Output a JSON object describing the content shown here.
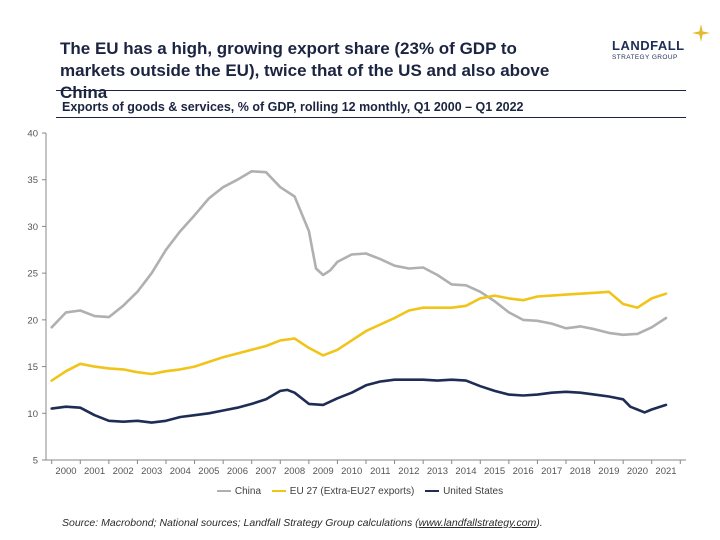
{
  "header": {
    "headline": "The EU has a high, growing export share (23% of GDP to markets outside the EU), twice that of the US and also above China",
    "logo_name": "LANDFALL",
    "logo_sub": "STRATEGY GROUP",
    "subtitle": "Exports of goods & services, % of GDP, rolling 12 monthly, Q1 2000 – Q1 2022"
  },
  "source": {
    "prefix": "Source: Macrobond; National sources; Landfall Strategy Group calculations (",
    "link": "www.landfallstrategy.com",
    "suffix": ")."
  },
  "colors": {
    "china": "#b0b0b0",
    "eu": "#f0c419",
    "us": "#1f2d55",
    "axis": "#888888"
  },
  "chart_data": {
    "type": "line",
    "title": "Exports of goods & services, % of GDP, rolling 12 monthly, Q1 2000 – Q1 2022",
    "xlabel": "",
    "ylabel": "",
    "ylim": [
      5,
      40
    ],
    "yticks": [
      5,
      10,
      15,
      20,
      25,
      30,
      35,
      40
    ],
    "xlim": [
      1999.8,
      2022.2
    ],
    "xticks": [
      "2000",
      "2001",
      "2002",
      "2003",
      "2004",
      "2005",
      "2006",
      "2007",
      "2008",
      "2009",
      "2010",
      "2011",
      "2012",
      "2013",
      "2014",
      "2015",
      "2016",
      "2017",
      "2018",
      "2019",
      "2020",
      "2021"
    ],
    "legend_position": "bottom",
    "grid": false,
    "series": [
      {
        "name": "China",
        "key": "china",
        "points": [
          [
            2000.0,
            19.2
          ],
          [
            2000.5,
            20.8
          ],
          [
            2001.0,
            21.0
          ],
          [
            2001.5,
            20.4
          ],
          [
            2002.0,
            20.3
          ],
          [
            2002.5,
            21.5
          ],
          [
            2003.0,
            23.0
          ],
          [
            2003.5,
            25.0
          ],
          [
            2004.0,
            27.5
          ],
          [
            2004.5,
            29.5
          ],
          [
            2005.0,
            31.2
          ],
          [
            2005.5,
            33.0
          ],
          [
            2006.0,
            34.2
          ],
          [
            2006.5,
            35.0
          ],
          [
            2007.0,
            35.9
          ],
          [
            2007.5,
            35.8
          ],
          [
            2008.0,
            34.2
          ],
          [
            2008.5,
            33.2
          ],
          [
            2009.0,
            29.5
          ],
          [
            2009.25,
            25.5
          ],
          [
            2009.5,
            24.8
          ],
          [
            2009.75,
            25.3
          ],
          [
            2010.0,
            26.2
          ],
          [
            2010.5,
            27.0
          ],
          [
            2011.0,
            27.1
          ],
          [
            2011.5,
            26.5
          ],
          [
            2012.0,
            25.8
          ],
          [
            2012.5,
            25.5
          ],
          [
            2013.0,
            25.6
          ],
          [
            2013.5,
            24.8
          ],
          [
            2014.0,
            23.8
          ],
          [
            2014.5,
            23.7
          ],
          [
            2015.0,
            23.0
          ],
          [
            2015.5,
            22.0
          ],
          [
            2016.0,
            20.8
          ],
          [
            2016.5,
            20.0
          ],
          [
            2017.0,
            19.9
          ],
          [
            2017.5,
            19.6
          ],
          [
            2018.0,
            19.1
          ],
          [
            2018.5,
            19.3
          ],
          [
            2019.0,
            19.0
          ],
          [
            2019.5,
            18.6
          ],
          [
            2020.0,
            18.4
          ],
          [
            2020.5,
            18.5
          ],
          [
            2021.0,
            19.2
          ],
          [
            2021.5,
            20.2
          ]
        ]
      },
      {
        "name": "EU 27 (Extra-EU27 exports)",
        "key": "eu",
        "points": [
          [
            2000.0,
            13.5
          ],
          [
            2000.5,
            14.5
          ],
          [
            2001.0,
            15.3
          ],
          [
            2001.5,
            15.0
          ],
          [
            2002.0,
            14.8
          ],
          [
            2002.5,
            14.7
          ],
          [
            2003.0,
            14.4
          ],
          [
            2003.5,
            14.2
          ],
          [
            2004.0,
            14.5
          ],
          [
            2004.5,
            14.7
          ],
          [
            2005.0,
            15.0
          ],
          [
            2005.5,
            15.5
          ],
          [
            2006.0,
            16.0
          ],
          [
            2006.5,
            16.4
          ],
          [
            2007.0,
            16.8
          ],
          [
            2007.5,
            17.2
          ],
          [
            2008.0,
            17.8
          ],
          [
            2008.5,
            18.0
          ],
          [
            2009.0,
            17.0
          ],
          [
            2009.5,
            16.2
          ],
          [
            2010.0,
            16.8
          ],
          [
            2010.5,
            17.8
          ],
          [
            2011.0,
            18.8
          ],
          [
            2011.5,
            19.5
          ],
          [
            2012.0,
            20.2
          ],
          [
            2012.5,
            21.0
          ],
          [
            2013.0,
            21.3
          ],
          [
            2013.5,
            21.3
          ],
          [
            2014.0,
            21.3
          ],
          [
            2014.5,
            21.5
          ],
          [
            2015.0,
            22.3
          ],
          [
            2015.5,
            22.6
          ],
          [
            2016.0,
            22.3
          ],
          [
            2016.5,
            22.1
          ],
          [
            2017.0,
            22.5
          ],
          [
            2017.5,
            22.6
          ],
          [
            2018.0,
            22.7
          ],
          [
            2018.5,
            22.8
          ],
          [
            2019.0,
            22.9
          ],
          [
            2019.5,
            23.0
          ],
          [
            2020.0,
            21.7
          ],
          [
            2020.5,
            21.3
          ],
          [
            2021.0,
            22.3
          ],
          [
            2021.5,
            22.8
          ]
        ]
      },
      {
        "name": "United States",
        "key": "us",
        "points": [
          [
            2000.0,
            10.5
          ],
          [
            2000.5,
            10.7
          ],
          [
            2001.0,
            10.6
          ],
          [
            2001.5,
            9.8
          ],
          [
            2002.0,
            9.2
          ],
          [
            2002.5,
            9.1
          ],
          [
            2003.0,
            9.2
          ],
          [
            2003.5,
            9.0
          ],
          [
            2004.0,
            9.2
          ],
          [
            2004.5,
            9.6
          ],
          [
            2005.0,
            9.8
          ],
          [
            2005.5,
            10.0
          ],
          [
            2006.0,
            10.3
          ],
          [
            2006.5,
            10.6
          ],
          [
            2007.0,
            11.0
          ],
          [
            2007.5,
            11.5
          ],
          [
            2008.0,
            12.4
          ],
          [
            2008.25,
            12.5
          ],
          [
            2008.5,
            12.2
          ],
          [
            2009.0,
            11.0
          ],
          [
            2009.5,
            10.9
          ],
          [
            2010.0,
            11.6
          ],
          [
            2010.5,
            12.2
          ],
          [
            2011.0,
            13.0
          ],
          [
            2011.5,
            13.4
          ],
          [
            2012.0,
            13.6
          ],
          [
            2012.5,
            13.6
          ],
          [
            2013.0,
            13.6
          ],
          [
            2013.5,
            13.5
          ],
          [
            2014.0,
            13.6
          ],
          [
            2014.5,
            13.5
          ],
          [
            2015.0,
            12.9
          ],
          [
            2015.5,
            12.4
          ],
          [
            2016.0,
            12.0
          ],
          [
            2016.5,
            11.9
          ],
          [
            2017.0,
            12.0
          ],
          [
            2017.5,
            12.2
          ],
          [
            2018.0,
            12.3
          ],
          [
            2018.5,
            12.2
          ],
          [
            2019.0,
            12.0
          ],
          [
            2019.5,
            11.8
          ],
          [
            2020.0,
            11.5
          ],
          [
            2020.25,
            10.7
          ],
          [
            2020.75,
            10.1
          ],
          [
            2021.0,
            10.4
          ],
          [
            2021.5,
            10.9
          ]
        ]
      }
    ]
  }
}
